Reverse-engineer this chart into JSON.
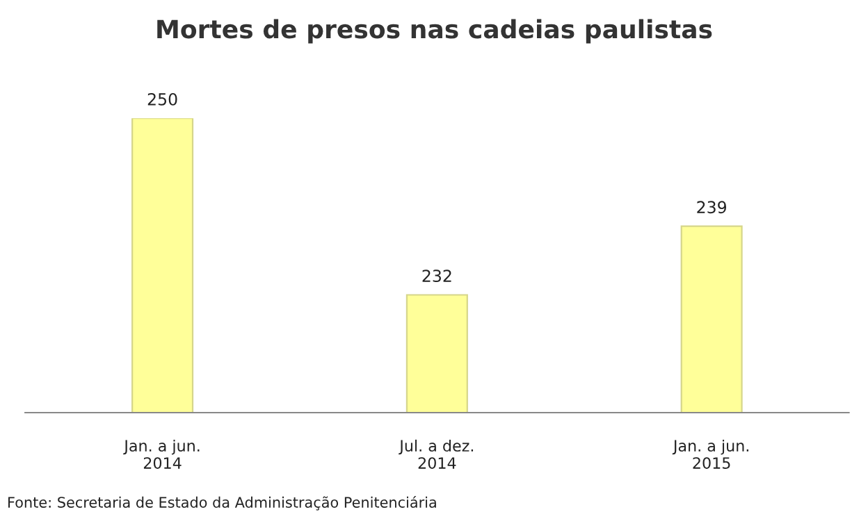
{
  "chart_data": {
    "type": "bar",
    "title": "Mortes de presos nas cadeias paulistas",
    "categories": [
      "Jan. a jun.\n2014",
      "Jul. a dez.\n2014",
      "Jan. a jun.\n2015"
    ],
    "values": [
      250,
      232,
      239
    ],
    "color": "#ffff99",
    "ylim": [
      220,
      250
    ],
    "tick_labels": "x",
    "data_labels": true,
    "grid": false,
    "legend": false,
    "annotations": [
      "Fonte: Secretaria de Estado da Administração Penitenciária"
    ]
  }
}
